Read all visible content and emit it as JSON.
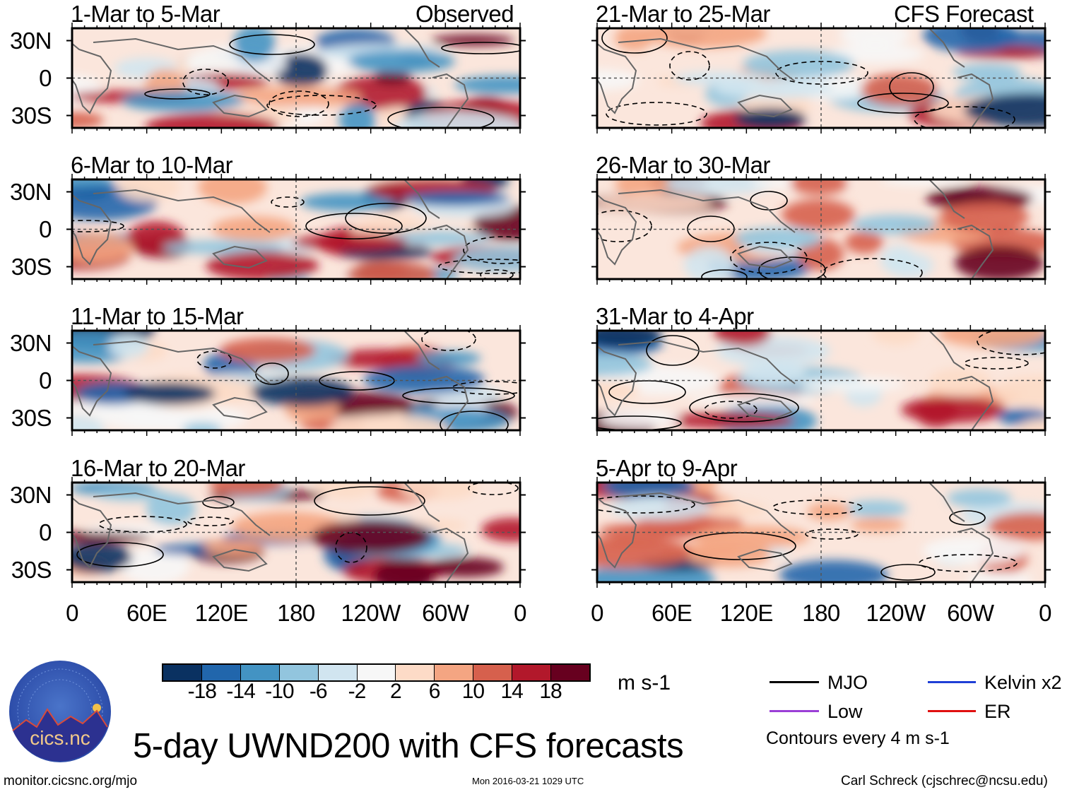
{
  "header": {
    "left_label": "Observed",
    "right_label": "CFS Forecast"
  },
  "panels": {
    "left": [
      {
        "title": "1-Mar to 5-Mar"
      },
      {
        "title": "6-Mar to 10-Mar"
      },
      {
        "title": "11-Mar to 15-Mar"
      },
      {
        "title": "16-Mar to 20-Mar"
      }
    ],
    "right": [
      {
        "title": "21-Mar to 25-Mar"
      },
      {
        "title": "26-Mar to 30-Mar"
      },
      {
        "title": "31-Mar to 4-Apr"
      },
      {
        "title": "5-Apr to 9-Apr"
      }
    ]
  },
  "lat_labels": [
    "30N",
    "0",
    "30S"
  ],
  "lon_labels": [
    "0",
    "60E",
    "120E",
    "180",
    "120W",
    "60W",
    "0"
  ],
  "colorbar": {
    "colors": [
      "#0a3161",
      "#2166ac",
      "#4393c3",
      "#92c5de",
      "#d1e5f0",
      "#f7f7f7",
      "#fddbc7",
      "#f4a582",
      "#d6604d",
      "#b2182b",
      "#67001f"
    ],
    "labels": [
      "-18",
      "-14",
      "-10",
      "-6",
      "-2",
      "2",
      "6",
      "10",
      "14",
      "18"
    ],
    "units": "m s-1"
  },
  "legend": {
    "items": [
      {
        "label": "MJO",
        "color": "#000000"
      },
      {
        "label": "Kelvin x2",
        "color": "#1f3fd6"
      },
      {
        "label": "Low",
        "color": "#9b3fd6"
      },
      {
        "label": "ER",
        "color": "#e01010"
      }
    ],
    "note": "Contours every 4 m s-1"
  },
  "logo": {
    "text": "cics.nc",
    "ring_text": "Cooperative Institute for Climate and Satellites"
  },
  "title": "5-day UWND200 with CFS forecasts",
  "footer": {
    "url": "monitor.cicsnc.org/mjo",
    "timestamp": "Mon 2016-03-21 1029 UTC",
    "author": "Carl Schreck (cjschrec@ncsu.edu)"
  }
}
